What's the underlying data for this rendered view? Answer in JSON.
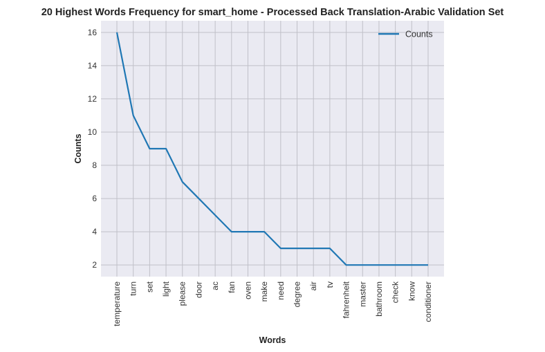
{
  "chart_data": {
    "type": "line",
    "title": "20 Highest Words Frequency for smart_home - Processed Back Translation-Arabic Validation Set",
    "xlabel": "Words",
    "ylabel": "Counts",
    "categories": [
      "temperature",
      "turn",
      "set",
      "light",
      "please",
      "door",
      "ac",
      "fan",
      "oven",
      "make",
      "need",
      "degree",
      "air",
      "tv",
      "fahrenheit",
      "master",
      "bathroom",
      "check",
      "know",
      "conditioner"
    ],
    "series": [
      {
        "name": "Counts",
        "values": [
          16,
          11,
          9,
          9,
          7,
          6,
          5,
          4,
          4,
          4,
          3,
          3,
          3,
          3,
          2,
          2,
          2,
          2,
          2,
          2
        ]
      }
    ],
    "ylim": [
      1.3,
      16.7
    ],
    "yticks": [
      2,
      4,
      6,
      8,
      10,
      12,
      14,
      16
    ],
    "grid": true,
    "legend_position": "top-right",
    "colors": {
      "line": "#1f77b4",
      "plot_background": "#eaeaf2",
      "grid": "#c0c0c8"
    }
  }
}
